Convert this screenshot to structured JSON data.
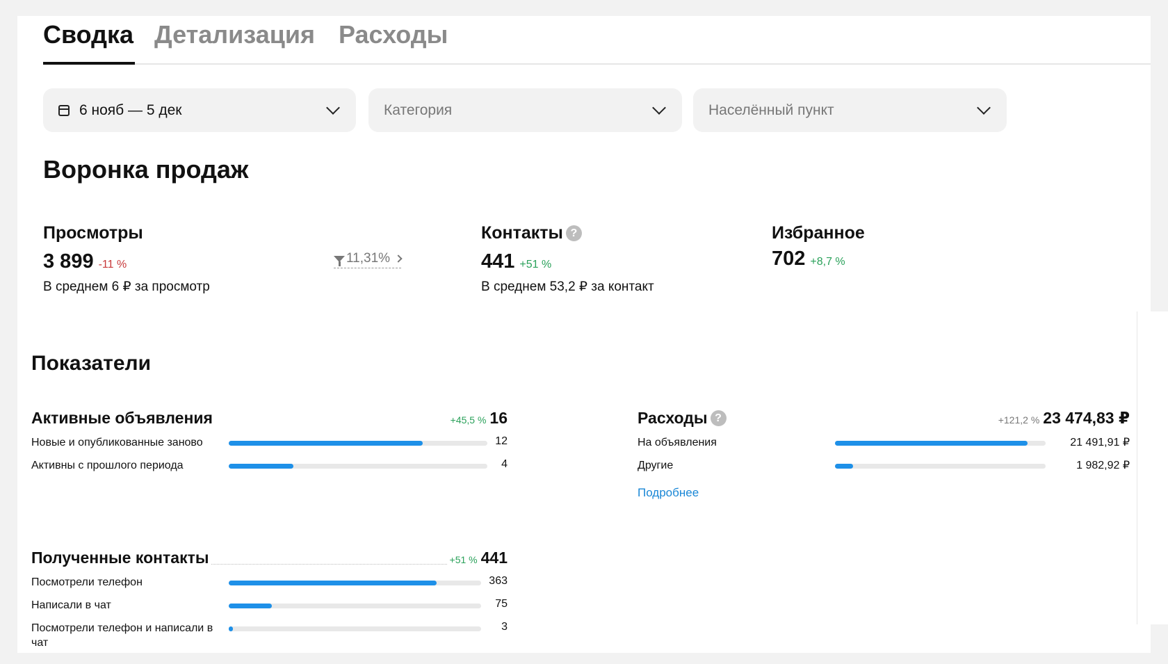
{
  "tabs": [
    {
      "label": "Сводка",
      "active": true
    },
    {
      "label": "Детализация",
      "active": false
    },
    {
      "label": "Расходы",
      "active": false
    }
  ],
  "filters": {
    "period": {
      "value": "6 нояб — 5 дек",
      "icon": "calendar-icon"
    },
    "category": {
      "placeholder": "Категория"
    },
    "city": {
      "placeholder": "Населённый пункт"
    }
  },
  "funnel": {
    "title": "Воронка продаж",
    "views": {
      "title": "Просмотры",
      "value": "3 899",
      "change": "-11 %",
      "sub": "В среднем 6 ₽ за просмотр",
      "conversion": "11,31%"
    },
    "contacts": {
      "title": "Контакты",
      "value": "441",
      "change": "+51 %",
      "sub": "В среднем 53,2 ₽ за контакт"
    },
    "favorites": {
      "title": "Избранное",
      "value": "702",
      "change": "+8,7 %"
    }
  },
  "indicators": {
    "title": "Показатели",
    "active_ads": {
      "title": "Активные объявления",
      "change": "+45,5 %",
      "total": "16",
      "rows": [
        {
          "label": "Новые и опубликованные заново",
          "value": "12",
          "fraction": 0.75
        },
        {
          "label": "Активны с прошлого периода",
          "value": "4",
          "fraction": 0.25
        }
      ]
    },
    "expenses": {
      "title": "Расходы",
      "change": "+121,2 %",
      "total": "23 474,83 ₽",
      "rows": [
        {
          "label": "На объявления",
          "value": "21 491,91 ₽",
          "fraction": 0.9155
        },
        {
          "label": "Другие",
          "value": "1 982,92 ₽",
          "fraction": 0.0845
        }
      ],
      "more": "Подробнее"
    },
    "contacts": {
      "title": "Полученные контакты",
      "change": "+51 %",
      "total": "441",
      "rows": [
        {
          "label": "Посмотрели телефон",
          "value": "363",
          "fraction": 0.823
        },
        {
          "label": "Написали в чат",
          "value": "75",
          "fraction": 0.17
        },
        {
          "label": "Посмотрели телефон и написали в чат",
          "value": "3",
          "fraction": 0.007
        }
      ]
    }
  },
  "colors": {
    "accent": "#1e90e8",
    "positive": "#2aa15a",
    "negative": "#c8393a",
    "link": "#1a87d6"
  }
}
